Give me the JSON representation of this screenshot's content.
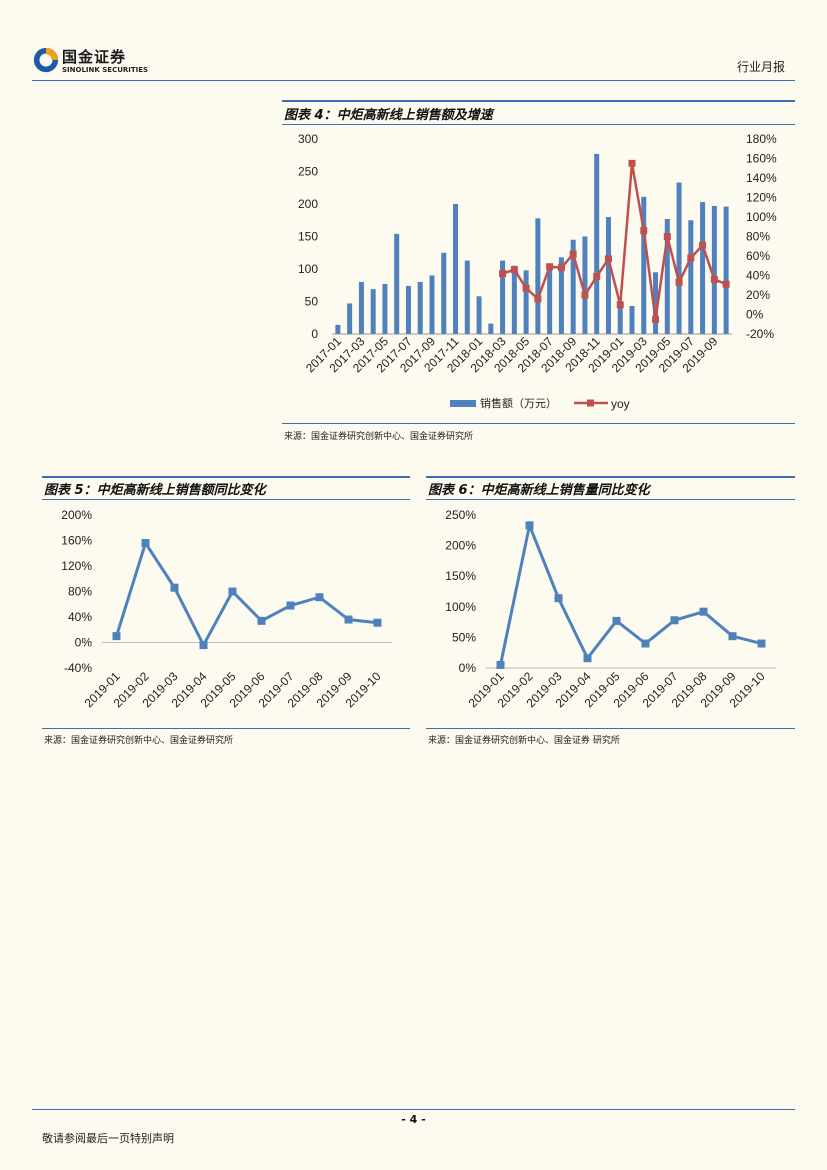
{
  "header": {
    "logo_cn": "国金证券",
    "logo_en": "SINOLINK SECURITIES",
    "doc_type": "行业月报"
  },
  "figures": {
    "fig4": {
      "title": "图表 4：中炬高新线上销售额及增速",
      "source": "来源：国金证券研究创新中心、国金证券研究所"
    },
    "fig5": {
      "title": "图表 5：中炬高新线上销售额同比变化",
      "source": "来源：国金证券研究创新中心、国金证券研究所"
    },
    "fig6": {
      "title": "图表 6：中炬高新线上销售量同比变化",
      "source": "来源：国金证券研究创新中心、国金证券 研究所"
    }
  },
  "footer": {
    "page": "- 4 -",
    "disclaimer": "敬请参阅最后一页特别声明"
  },
  "colors": {
    "rule": "#3a6fb0",
    "bar": "#4f81bd",
    "line_red": "#c0504d",
    "line_blue": "#4f81bd"
  },
  "chart_data": [
    {
      "id": "fig4",
      "type": "bar+line",
      "categories": [
        "2017-01",
        "2017-02",
        "2017-03",
        "2017-04",
        "2017-05",
        "2017-06",
        "2017-07",
        "2017-08",
        "2017-09",
        "2017-10",
        "2017-11",
        "2017-12",
        "2018-01",
        "2018-02",
        "2018-03",
        "2018-04",
        "2018-05",
        "2018-06",
        "2018-07",
        "2018-08",
        "2018-09",
        "2018-10",
        "2018-11",
        "2018-12",
        "2019-01",
        "2019-02",
        "2019-03",
        "2019-04",
        "2019-05",
        "2019-06",
        "2019-07",
        "2019-08",
        "2019-09",
        "2019-10"
      ],
      "tick_labels": [
        "2017-01",
        "2017-03",
        "2017-05",
        "2017-07",
        "2017-09",
        "2017-11",
        "2018-01",
        "2018-03",
        "2018-05",
        "2018-07",
        "2018-09",
        "2018-11",
        "2019-01",
        "2019-03",
        "2019-05",
        "2019-07",
        "2019-09"
      ],
      "series": [
        {
          "name": "销售额（万元）",
          "type": "bar",
          "axis": "left",
          "values": [
            14,
            47,
            80,
            69,
            77,
            154,
            74,
            80,
            90,
            125,
            200,
            113,
            58,
            16,
            113,
            105,
            98,
            178,
            108,
            118,
            145,
            150,
            277,
            180,
            40,
            43,
            211,
            95,
            177,
            233,
            175,
            203,
            197,
            196
          ]
        },
        {
          "name": "yoy",
          "type": "line",
          "axis": "right",
          "values": [
            null,
            null,
            null,
            null,
            null,
            null,
            null,
            null,
            null,
            null,
            null,
            null,
            null,
            null,
            42,
            46,
            27,
            16,
            49,
            48,
            62,
            20,
            39,
            57,
            10,
            155,
            86,
            -5,
            80,
            33,
            58,
            71,
            36,
            31
          ]
        }
      ],
      "left_axis": {
        "min": 0,
        "max": 300,
        "ticks": [
          0,
          50,
          100,
          150,
          200,
          250,
          300
        ]
      },
      "right_axis": {
        "min": -20,
        "max": 180,
        "ticks": [
          "-20%",
          "0%",
          "20%",
          "40%",
          "60%",
          "80%",
          "100%",
          "120%",
          "140%",
          "160%",
          "180%"
        ]
      }
    },
    {
      "id": "fig5",
      "type": "line",
      "categories": [
        "2019-01",
        "2019-02",
        "2019-03",
        "2019-04",
        "2019-05",
        "2019-06",
        "2019-07",
        "2019-08",
        "2019-09",
        "2019-10"
      ],
      "values": [
        10,
        156,
        86,
        -4,
        80,
        34,
        58,
        71,
        36,
        31
      ],
      "y_axis": {
        "min": -40,
        "max": 200,
        "ticks": [
          "-40%",
          "0%",
          "40%",
          "80%",
          "120%",
          "160%",
          "200%"
        ]
      }
    },
    {
      "id": "fig6",
      "type": "line",
      "categories": [
        "2019-01",
        "2019-02",
        "2019-03",
        "2019-04",
        "2019-05",
        "2019-06",
        "2019-07",
        "2019-08",
        "2019-09",
        "2019-10"
      ],
      "values": [
        5,
        233,
        114,
        16,
        77,
        40,
        78,
        92,
        52,
        40
      ],
      "y_axis": {
        "min": 0,
        "max": 250,
        "ticks": [
          "0%",
          "50%",
          "100%",
          "150%",
          "200%",
          "250%"
        ]
      }
    }
  ]
}
